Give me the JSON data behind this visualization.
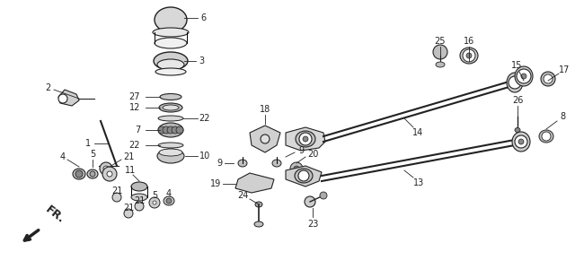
{
  "bg_color": "#ffffff",
  "line_color": "#222222",
  "fig_width": 6.4,
  "fig_height": 3.0,
  "dpi": 100,
  "xlim": [
    0,
    640
  ],
  "ylim": [
    0,
    300
  ]
}
